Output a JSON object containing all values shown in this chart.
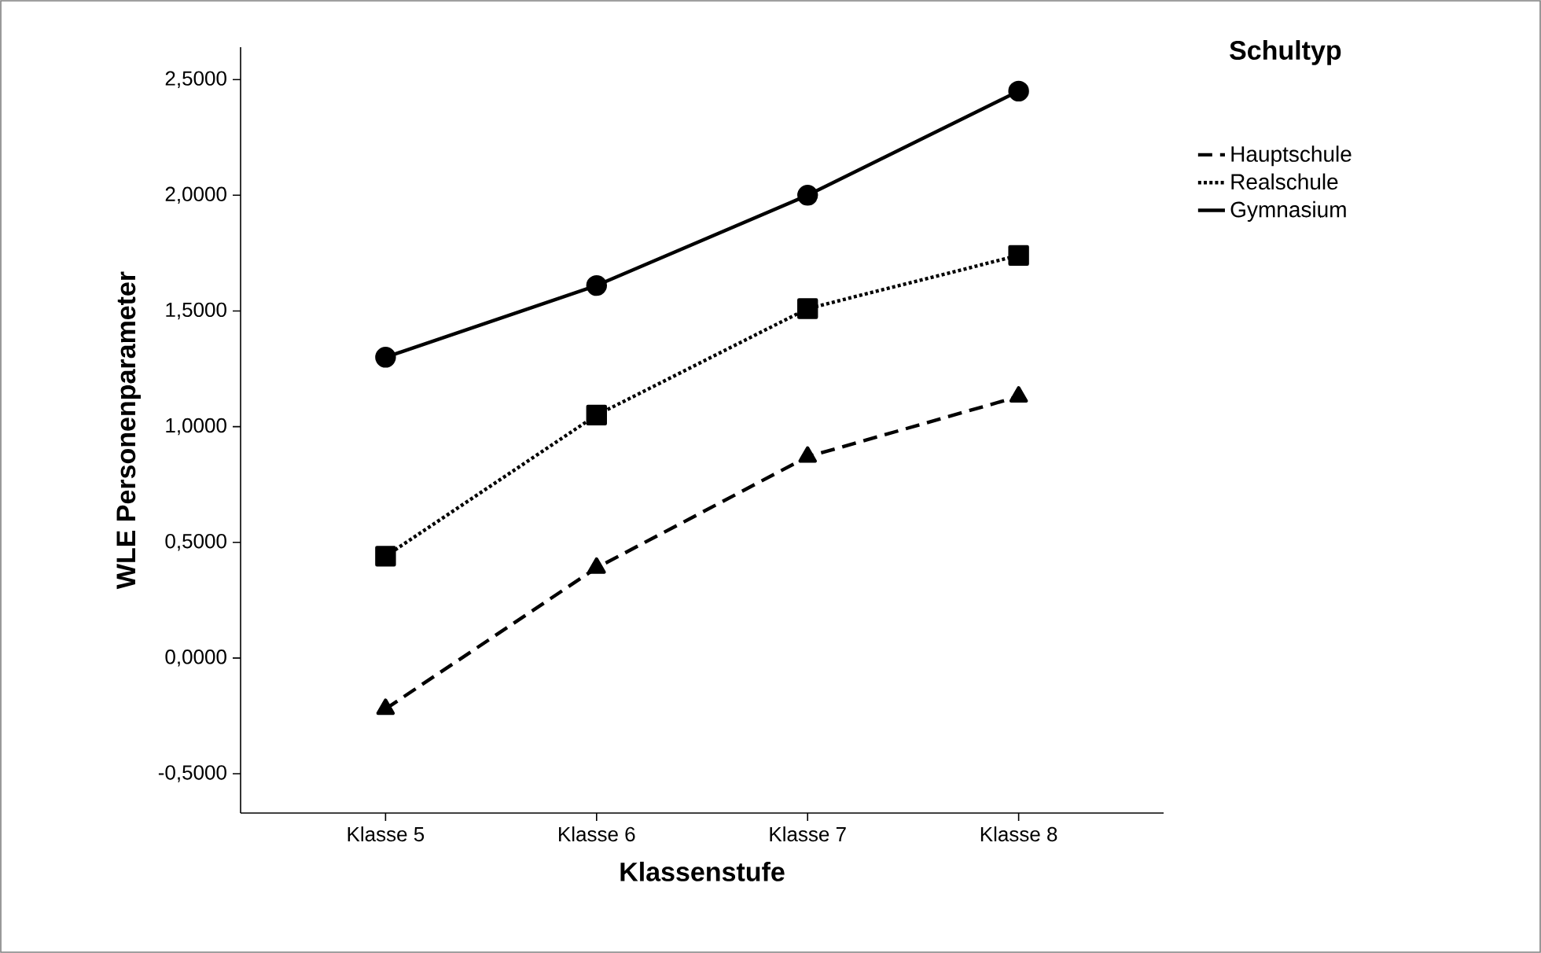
{
  "chart_data": {
    "type": "line",
    "xlabel": "Klassenstufe",
    "ylabel": "WLE Personenparameter",
    "legend_title": "Schultyp",
    "legend": "right",
    "categories": [
      "Klasse 5",
      "Klasse 6",
      "Klasse 7",
      "Klasse 8"
    ],
    "ylim": [
      -0.67,
      2.64
    ],
    "yticks": [
      {
        "value": -0.5,
        "label": "-0,5000"
      },
      {
        "value": 0,
        "label": "0,0000"
      },
      {
        "value": 0.5,
        "label": "0,5000"
      },
      {
        "value": 1,
        "label": "1,0000"
      },
      {
        "value": 1.5,
        "label": "1,5000"
      },
      {
        "value": 2,
        "label": "2,0000"
      },
      {
        "value": 2.5,
        "label": "2,5000"
      }
    ],
    "series": [
      {
        "name": "Hauptschule",
        "color": "#000000",
        "line_style": "dashed",
        "marker": "triangle",
        "values": [
          -0.22,
          0.39,
          0.87,
          1.13
        ]
      },
      {
        "name": "Realschule",
        "color": "#000000",
        "line_style": "dotted",
        "marker": "square",
        "values": [
          0.44,
          1.05,
          1.51,
          1.74
        ]
      },
      {
        "name": "Gymnasium",
        "color": "#000000",
        "line_style": "solid",
        "marker": "circle",
        "values": [
          1.3,
          1.61,
          2.0,
          2.45
        ]
      }
    ]
  }
}
